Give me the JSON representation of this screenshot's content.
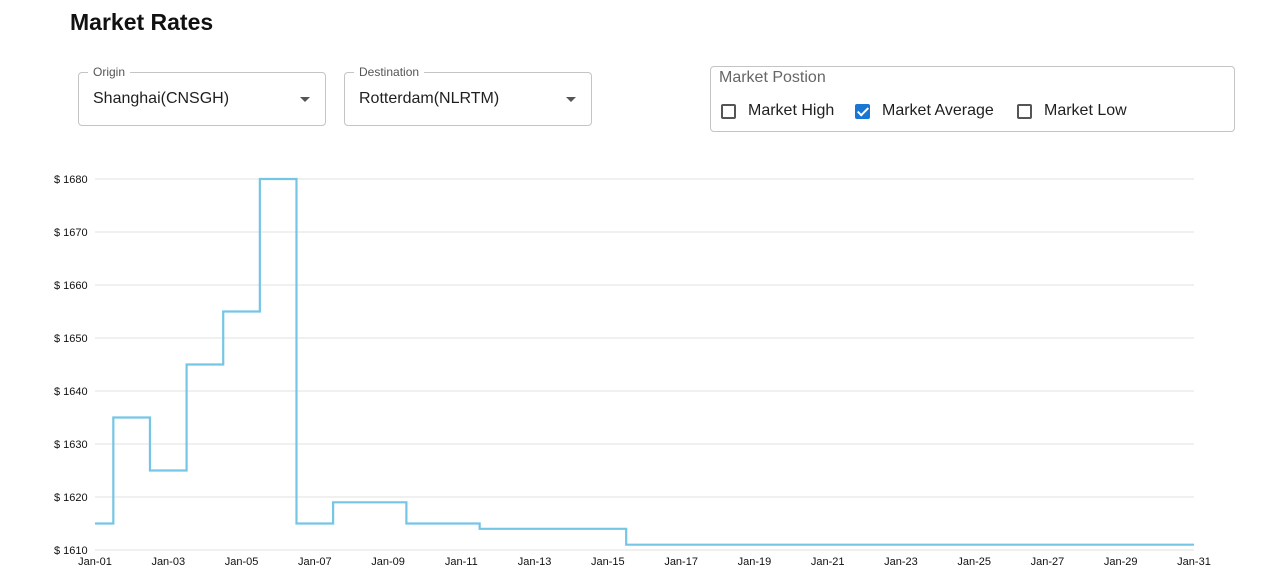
{
  "page": {
    "title": "Market Rates"
  },
  "filters": {
    "origin": {
      "label": "Origin",
      "value": "Shanghai(CNSGH)"
    },
    "destination": {
      "label": "Destination",
      "value": "Rotterdam(NLRTM)"
    }
  },
  "market_position": {
    "legend": "Market Postion",
    "options": [
      {
        "label": "Market High",
        "checked": false
      },
      {
        "label": "Market Average",
        "checked": true
      },
      {
        "label": "Market Low",
        "checked": false
      }
    ]
  },
  "colors": {
    "line": "#74c6e4",
    "grid": "#e0e0e0",
    "checkbox_accent": "#1976d2"
  },
  "chart_data": {
    "type": "line",
    "step": true,
    "x": [
      "Jan-01",
      "Jan-02",
      "Jan-03",
      "Jan-04",
      "Jan-05",
      "Jan-06",
      "Jan-07",
      "Jan-08",
      "Jan-09",
      "Jan-10",
      "Jan-11",
      "Jan-12",
      "Jan-13",
      "Jan-14",
      "Jan-15",
      "Jan-16",
      "Jan-17",
      "Jan-18",
      "Jan-19",
      "Jan-20",
      "Jan-21",
      "Jan-22",
      "Jan-23",
      "Jan-24",
      "Jan-25",
      "Jan-26",
      "Jan-27",
      "Jan-28",
      "Jan-29",
      "Jan-30",
      "Jan-31"
    ],
    "series": [
      {
        "values": [
          1615,
          1635,
          1625,
          1645,
          1655,
          1680,
          1615,
          1619,
          1619,
          1615,
          1615,
          1614,
          1614,
          1614,
          1614,
          1611,
          1611,
          1611,
          1611,
          1611,
          1611,
          1611,
          1611,
          1611,
          1611,
          1611,
          1611,
          1611,
          1611,
          1611,
          1611
        ]
      }
    ],
    "x_tick_labels": [
      "Jan-01",
      "Jan-03",
      "Jan-05",
      "Jan-07",
      "Jan-09",
      "Jan-11",
      "Jan-13",
      "Jan-15",
      "Jan-17",
      "Jan-19",
      "Jan-21",
      "Jan-23",
      "Jan-25",
      "Jan-27",
      "Jan-29",
      "Jan-31"
    ],
    "y_ticks": [
      1610,
      1620,
      1630,
      1640,
      1650,
      1660,
      1670,
      1680
    ],
    "y_tick_prefix": "$ ",
    "ylim": [
      1610,
      1680
    ],
    "grid": true,
    "legend": false
  }
}
